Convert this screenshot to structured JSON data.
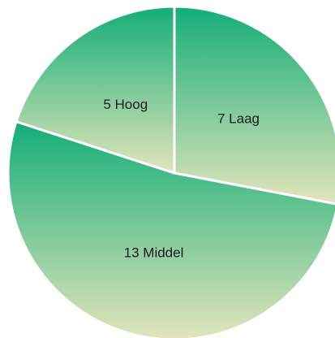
{
  "chart_data": {
    "type": "pie",
    "categories": [
      "Laag",
      "Middel",
      "Hoog"
    ],
    "values": [
      7,
      13,
      5
    ],
    "gradient": [
      "#14ad78",
      "#e3e5bc"
    ],
    "stroke": "#ffffff"
  }
}
